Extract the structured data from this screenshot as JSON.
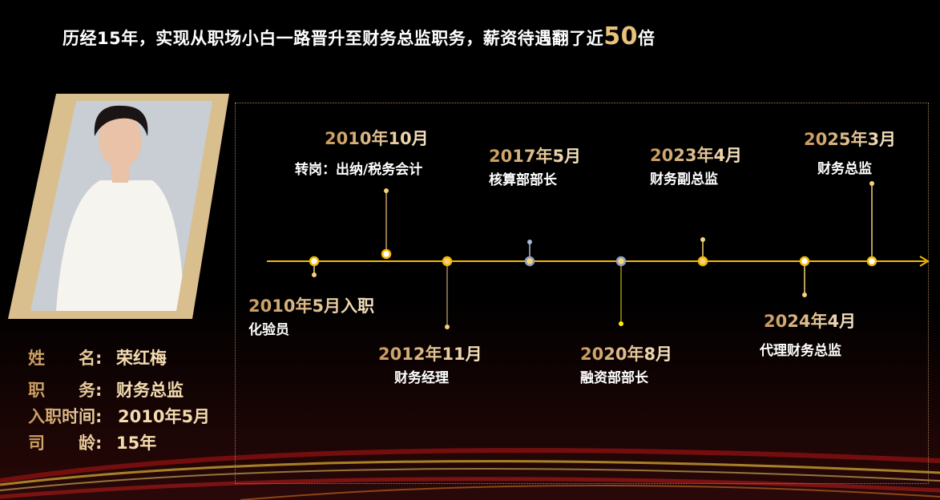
{
  "header": {
    "title_prefix": "历经15年，实现从职场小白一路晋升至财务总监职务，薪资待遇翻了近",
    "title_highlight": "50",
    "title_suffix": "倍"
  },
  "profile": {
    "rows": [
      {
        "label": "姓　　名:",
        "value": "荣红梅"
      },
      {
        "label": "职　　务:",
        "value": "财务总监"
      },
      {
        "label": "入职时间:",
        "value": "2010年5月"
      },
      {
        "label": "司　　龄:",
        "value": "15年"
      }
    ]
  },
  "timeline": {
    "milestones": [
      {
        "date": "2010年5月入职",
        "role": "化验员"
      },
      {
        "date": "2010年10月",
        "role": "转岗：出纳/税务会计"
      },
      {
        "date": "2012年11月",
        "role": "财务经理"
      },
      {
        "date": "2017年5月",
        "role": "核算部部长"
      },
      {
        "date": "2020年8月",
        "role": "融资部部长"
      },
      {
        "date": "2023年4月",
        "role": "财务副总监"
      },
      {
        "date": "2024年4月",
        "role": "代理财务总监"
      },
      {
        "date": "2025年3月",
        "role": "财务总监"
      }
    ]
  },
  "colors": {
    "accent": "#f5b800",
    "gold": "#e8c27a",
    "frame": "#d9bf8e"
  }
}
